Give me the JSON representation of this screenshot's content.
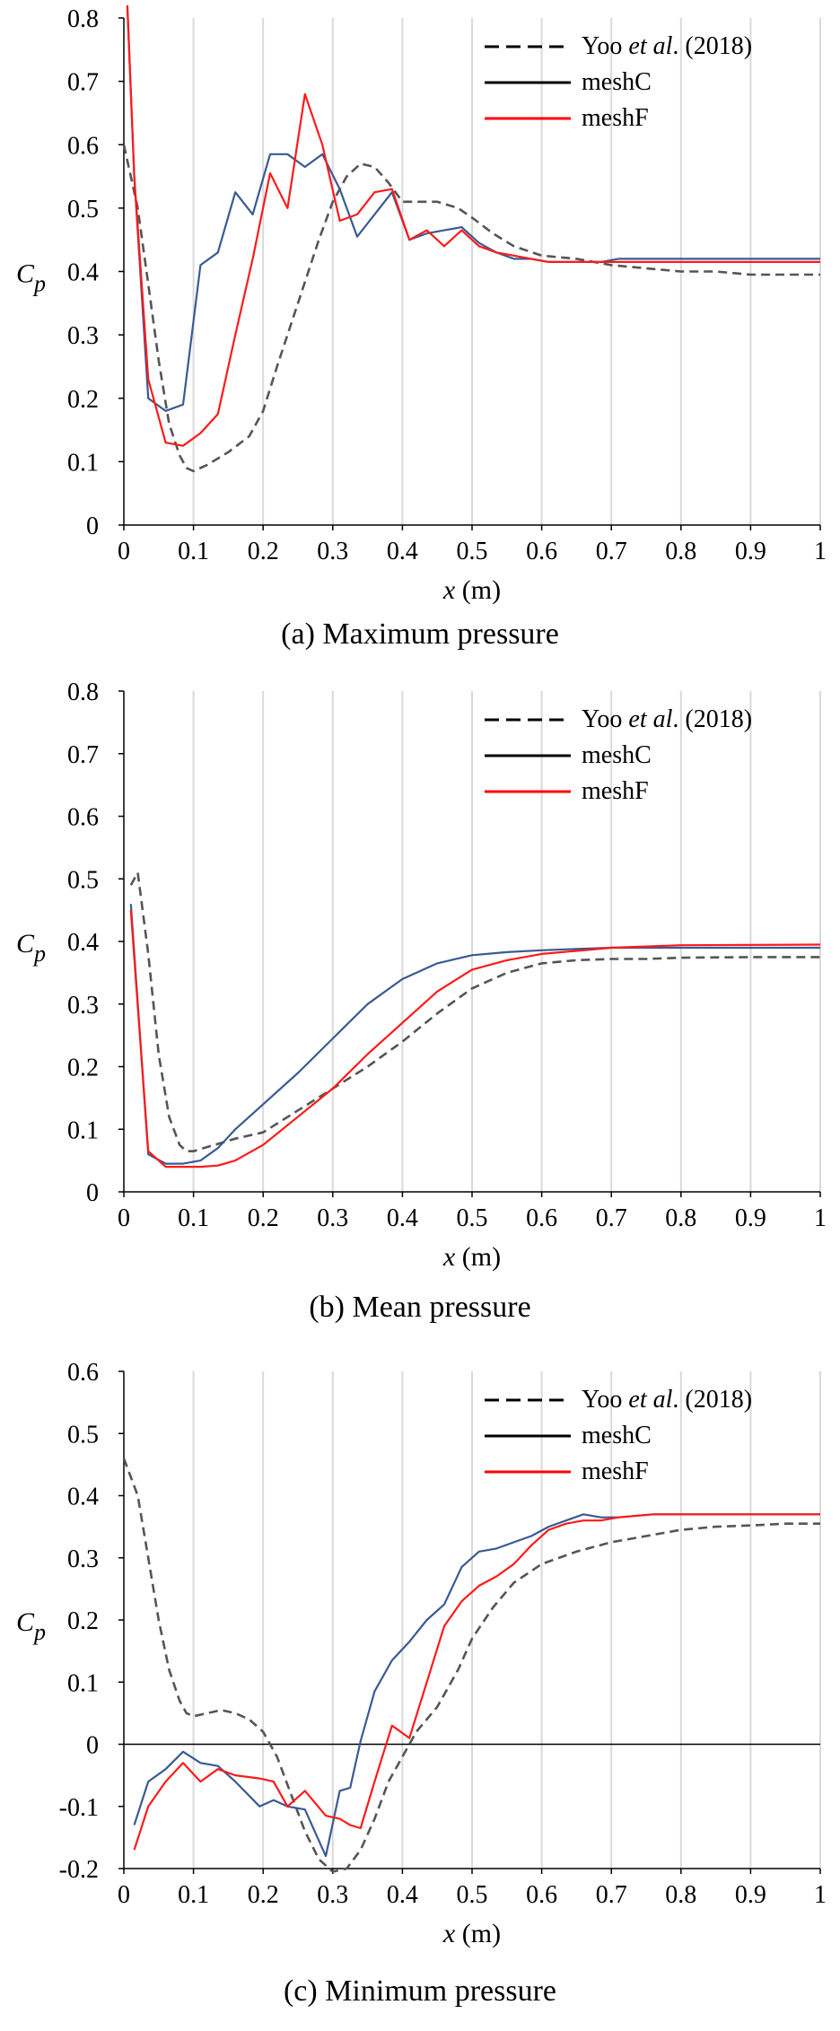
{
  "chart_data": [
    {
      "type": "line",
      "caption": "(a) Maximum pressure",
      "xlabel_var": "x",
      "xlabel_unit": " (m)",
      "ylabel_main": "C",
      "ylabel_sub": "p",
      "xlim": [
        0,
        1
      ],
      "ylim": [
        0,
        0.8
      ],
      "xticks": [
        0,
        0.1,
        0.2,
        0.3,
        0.4,
        0.5,
        0.6,
        0.7,
        0.8,
        0.9,
        1
      ],
      "xtick_labels": [
        "0",
        "0.1",
        "0.2",
        "0.3",
        "0.4",
        "0.5",
        "0.6",
        "0.7",
        "0.8",
        "0.9",
        "1"
      ],
      "yticks": [
        0,
        0.1,
        0.2,
        0.3,
        0.4,
        0.5,
        0.6,
        0.7,
        0.8
      ],
      "ytick_labels": [
        "0",
        "0.1",
        "0.2",
        "0.3",
        "0.4",
        "0.5",
        "0.6",
        "0.7",
        "0.8"
      ],
      "zero_line": false,
      "grid": true,
      "legend_position": "top-right",
      "legend": [
        {
          "prefix": "Yoo ",
          "italic": "et al",
          "suffix": ". (2018)",
          "color": "#000000",
          "dash": true
        },
        {
          "prefix": "meshC",
          "italic": "",
          "suffix": "",
          "color": "#000000",
          "dash": false
        },
        {
          "prefix": "meshF",
          "italic": "",
          "suffix": "",
          "color": "#ff0000",
          "dash": false
        }
      ],
      "series": [
        {
          "name": "Yoo et al. (2018)",
          "color": "#555555",
          "dash": true,
          "x": [
            0,
            0.02,
            0.035,
            0.05,
            0.065,
            0.08,
            0.09,
            0.1,
            0.12,
            0.15,
            0.18,
            0.2,
            0.22,
            0.25,
            0.28,
            0.3,
            0.32,
            0.34,
            0.36,
            0.38,
            0.4,
            0.42,
            0.45,
            0.48,
            0.5,
            0.53,
            0.56,
            0.6,
            0.65,
            0.7,
            0.75,
            0.8,
            0.85,
            0.9,
            0.95,
            1
          ],
          "y": [
            0.6,
            0.5,
            0.38,
            0.26,
            0.16,
            0.11,
            0.09,
            0.085,
            0.095,
            0.115,
            0.14,
            0.18,
            0.25,
            0.35,
            0.45,
            0.51,
            0.55,
            0.57,
            0.565,
            0.54,
            0.51,
            0.51,
            0.51,
            0.5,
            0.485,
            0.46,
            0.44,
            0.425,
            0.42,
            0.41,
            0.405,
            0.4,
            0.4,
            0.395,
            0.395,
            0.395
          ]
        },
        {
          "name": "meshC",
          "color": "#3a5a93",
          "dash": false,
          "x": [
            0.005,
            0.015,
            0.035,
            0.06,
            0.085,
            0.11,
            0.135,
            0.16,
            0.185,
            0.21,
            0.235,
            0.26,
            0.285,
            0.31,
            0.335,
            0.36,
            0.385,
            0.41,
            0.435,
            0.46,
            0.485,
            0.51,
            0.535,
            0.56,
            0.585,
            0.61,
            0.635,
            0.66,
            0.685,
            0.71,
            0.76,
            1
          ],
          "y": [
            0.82,
            0.55,
            0.2,
            0.18,
            0.19,
            0.41,
            0.43,
            0.525,
            0.49,
            0.585,
            0.585,
            0.565,
            0.585,
            0.53,
            0.455,
            0.49,
            0.525,
            0.45,
            0.46,
            0.465,
            0.47,
            0.445,
            0.43,
            0.42,
            0.42,
            0.415,
            0.415,
            0.415,
            0.415,
            0.42,
            0.42,
            0.42
          ]
        },
        {
          "name": "meshF",
          "color": "#ff1a1a",
          "dash": false,
          "x": [
            0.005,
            0.015,
            0.035,
            0.06,
            0.085,
            0.11,
            0.135,
            0.16,
            0.185,
            0.21,
            0.235,
            0.26,
            0.285,
            0.31,
            0.335,
            0.36,
            0.385,
            0.41,
            0.435,
            0.46,
            0.485,
            0.51,
            0.535,
            0.56,
            0.585,
            0.61,
            0.635,
            0.66,
            0.685,
            0.71,
            0.76,
            1
          ],
          "y": [
            0.82,
            0.55,
            0.23,
            0.13,
            0.125,
            0.145,
            0.175,
            0.3,
            0.42,
            0.555,
            0.5,
            0.68,
            0.6,
            0.48,
            0.49,
            0.525,
            0.53,
            0.45,
            0.465,
            0.44,
            0.465,
            0.44,
            0.43,
            0.425,
            0.42,
            0.415,
            0.415,
            0.415,
            0.415,
            0.415,
            0.415,
            0.415
          ]
        }
      ]
    },
    {
      "type": "line",
      "caption": "(b) Mean pressure",
      "xlabel_var": "x",
      "xlabel_unit": " (m)",
      "ylabel_main": "C",
      "ylabel_sub": "p",
      "xlim": [
        0,
        1
      ],
      "ylim": [
        0,
        0.8
      ],
      "xticks": [
        0,
        0.1,
        0.2,
        0.3,
        0.4,
        0.5,
        0.6,
        0.7,
        0.8,
        0.9,
        1
      ],
      "xtick_labels": [
        "0",
        "0.1",
        "0.2",
        "0.3",
        "0.4",
        "0.5",
        "0.6",
        "0.7",
        "0.8",
        "0.9",
        "1"
      ],
      "yticks": [
        0,
        0.1,
        0.2,
        0.3,
        0.4,
        0.5,
        0.6,
        0.7,
        0.8
      ],
      "ytick_labels": [
        "0",
        "0.1",
        "0.2",
        "0.3",
        "0.4",
        "0.5",
        "0.6",
        "0.7",
        "0.8"
      ],
      "zero_line": false,
      "grid": true,
      "legend_position": "top-right",
      "legend": [
        {
          "prefix": "Yoo ",
          "italic": "et al",
          "suffix": ". (2018)",
          "color": "#000000",
          "dash": true
        },
        {
          "prefix": "meshC",
          "italic": "",
          "suffix": "",
          "color": "#000000",
          "dash": false
        },
        {
          "prefix": "meshF",
          "italic": "",
          "suffix": "",
          "color": "#ff0000",
          "dash": false
        }
      ],
      "series": [
        {
          "name": "Yoo et al. (2018)",
          "color": "#555555",
          "dash": true,
          "x": [
            0.01,
            0.02,
            0.035,
            0.05,
            0.065,
            0.08,
            0.09,
            0.1,
            0.13,
            0.16,
            0.2,
            0.25,
            0.3,
            0.35,
            0.4,
            0.45,
            0.5,
            0.55,
            0.6,
            0.65,
            0.7,
            0.75,
            0.8,
            0.9,
            1
          ],
          "y": [
            0.49,
            0.51,
            0.38,
            0.22,
            0.12,
            0.075,
            0.065,
            0.065,
            0.075,
            0.085,
            0.095,
            0.13,
            0.165,
            0.2,
            0.24,
            0.285,
            0.325,
            0.35,
            0.365,
            0.37,
            0.372,
            0.372,
            0.374,
            0.375,
            0.375
          ]
        },
        {
          "name": "meshC",
          "color": "#3a5a93",
          "dash": false,
          "x": [
            0.01,
            0.035,
            0.06,
            0.085,
            0.11,
            0.135,
            0.16,
            0.2,
            0.25,
            0.3,
            0.35,
            0.4,
            0.45,
            0.5,
            0.55,
            0.6,
            0.65,
            0.7,
            0.75,
            0.8,
            1
          ],
          "y": [
            0.46,
            0.06,
            0.045,
            0.045,
            0.05,
            0.07,
            0.1,
            0.14,
            0.19,
            0.245,
            0.3,
            0.34,
            0.365,
            0.378,
            0.383,
            0.386,
            0.388,
            0.39,
            0.39,
            0.39,
            0.39
          ]
        },
        {
          "name": "meshF",
          "color": "#ff1a1a",
          "dash": false,
          "x": [
            0.01,
            0.035,
            0.06,
            0.085,
            0.11,
            0.135,
            0.16,
            0.2,
            0.25,
            0.3,
            0.35,
            0.4,
            0.45,
            0.5,
            0.55,
            0.6,
            0.65,
            0.7,
            0.75,
            0.8,
            1
          ],
          "y": [
            0.45,
            0.065,
            0.04,
            0.04,
            0.04,
            0.042,
            0.05,
            0.075,
            0.12,
            0.165,
            0.22,
            0.27,
            0.32,
            0.355,
            0.37,
            0.38,
            0.385,
            0.39,
            0.392,
            0.394,
            0.395
          ]
        }
      ]
    },
    {
      "type": "line",
      "caption": "(c) Minimum pressure",
      "xlabel_var": "x",
      "xlabel_unit": " (m)",
      "ylabel_main": "C",
      "ylabel_sub": "p",
      "xlim": [
        0,
        1
      ],
      "ylim": [
        -0.2,
        0.6
      ],
      "xticks": [
        0,
        0.1,
        0.2,
        0.3,
        0.4,
        0.5,
        0.6,
        0.7,
        0.8,
        0.9,
        1
      ],
      "xtick_labels": [
        "0",
        "0.1",
        "0.2",
        "0.3",
        "0.4",
        "0.5",
        "0.6",
        "0.7",
        "0.8",
        "0.9",
        "1"
      ],
      "yticks": [
        -0.2,
        -0.1,
        0,
        0.1,
        0.2,
        0.3,
        0.4,
        0.5,
        0.6
      ],
      "ytick_labels": [
        "-0.2",
        "-0.1",
        "0",
        "0.1",
        "0.2",
        "0.3",
        "0.4",
        "0.5",
        "0.6"
      ],
      "zero_line": true,
      "grid": true,
      "legend_position": "top-right",
      "legend": [
        {
          "prefix": "Yoo ",
          "italic": "et al",
          "suffix": ". (2018)",
          "color": "#000000",
          "dash": true
        },
        {
          "prefix": "meshC",
          "italic": "",
          "suffix": "",
          "color": "#000000",
          "dash": false
        },
        {
          "prefix": "meshF",
          "italic": "",
          "suffix": "",
          "color": "#ff0000",
          "dash": false
        }
      ],
      "series": [
        {
          "name": "Yoo et al. (2018)",
          "color": "#555555",
          "dash": true,
          "x": [
            0,
            0.02,
            0.035,
            0.05,
            0.065,
            0.08,
            0.09,
            0.1,
            0.12,
            0.14,
            0.16,
            0.18,
            0.2,
            0.22,
            0.24,
            0.26,
            0.28,
            0.3,
            0.32,
            0.34,
            0.36,
            0.38,
            0.4,
            0.42,
            0.45,
            0.48,
            0.5,
            0.53,
            0.56,
            0.6,
            0.65,
            0.7,
            0.75,
            0.8,
            0.85,
            0.9,
            0.95,
            1
          ],
          "y": [
            0.46,
            0.4,
            0.3,
            0.2,
            0.12,
            0.07,
            0.05,
            0.045,
            0.05,
            0.055,
            0.05,
            0.04,
            0.02,
            -0.02,
            -0.08,
            -0.14,
            -0.185,
            -0.205,
            -0.2,
            -0.17,
            -0.12,
            -0.06,
            -0.02,
            0.02,
            0.06,
            0.12,
            0.17,
            0.22,
            0.26,
            0.29,
            0.31,
            0.325,
            0.335,
            0.345,
            0.35,
            0.352,
            0.355,
            0.355
          ]
        },
        {
          "name": "meshC",
          "color": "#3a5a93",
          "dash": false,
          "x": [
            0.015,
            0.035,
            0.06,
            0.085,
            0.11,
            0.135,
            0.16,
            0.195,
            0.215,
            0.235,
            0.26,
            0.29,
            0.31,
            0.325,
            0.34,
            0.36,
            0.385,
            0.41,
            0.435,
            0.46,
            0.485,
            0.51,
            0.535,
            0.56,
            0.585,
            0.61,
            0.635,
            0.66,
            0.685,
            0.71,
            0.76,
            1
          ],
          "y": [
            -0.13,
            -0.06,
            -0.04,
            -0.012,
            -0.03,
            -0.035,
            -0.06,
            -0.1,
            -0.09,
            -0.1,
            -0.105,
            -0.18,
            -0.075,
            -0.07,
            0.005,
            0.085,
            0.135,
            0.165,
            0.2,
            0.225,
            0.285,
            0.31,
            0.315,
            0.325,
            0.335,
            0.35,
            0.36,
            0.37,
            0.365,
            0.365,
            0.37,
            0.37
          ]
        },
        {
          "name": "meshF",
          "color": "#ff1a1a",
          "dash": false,
          "x": [
            0.015,
            0.035,
            0.06,
            0.085,
            0.11,
            0.135,
            0.16,
            0.195,
            0.215,
            0.235,
            0.26,
            0.29,
            0.31,
            0.325,
            0.34,
            0.36,
            0.385,
            0.41,
            0.435,
            0.46,
            0.485,
            0.51,
            0.535,
            0.56,
            0.585,
            0.61,
            0.635,
            0.66,
            0.685,
            0.71,
            0.76,
            1
          ],
          "y": [
            -0.17,
            -0.1,
            -0.06,
            -0.03,
            -0.06,
            -0.04,
            -0.05,
            -0.055,
            -0.06,
            -0.1,
            -0.075,
            -0.115,
            -0.12,
            -0.13,
            -0.135,
            -0.06,
            0.03,
            0.01,
            0.1,
            0.19,
            0.23,
            0.255,
            0.27,
            0.29,
            0.32,
            0.345,
            0.355,
            0.36,
            0.36,
            0.365,
            0.37,
            0.37
          ]
        }
      ]
    }
  ]
}
